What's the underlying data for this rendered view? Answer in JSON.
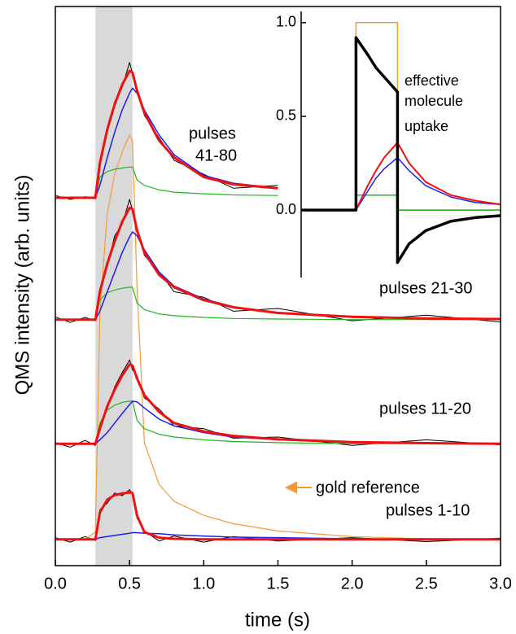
{
  "chart_data": [
    {
      "type": "line",
      "x_label": "time (s)",
      "y_label": "QMS intensity (arb. units)",
      "xlim": [
        0,
        3
      ],
      "ylim": [
        0,
        10
      ],
      "xticks": [
        {
          "value": 0,
          "label": "0.0"
        },
        {
          "value": 0.5,
          "label": "0.5"
        },
        {
          "value": 1,
          "label": "1.0"
        },
        {
          "value": 1.5,
          "label": "1.5"
        },
        {
          "value": 2,
          "label": "2.0"
        },
        {
          "value": 2.5,
          "label": "2.5"
        },
        {
          "value": 3,
          "label": "3.0"
        }
      ],
      "shaded_region": [
        0.27,
        0.52
      ],
      "shade_color": "#d9d9d9",
      "annotations": [
        "pulses",
        "41-80",
        "pulses 21-30",
        "pulses 11-20",
        "pulses 1-10",
        "gold reference"
      ],
      "x": [
        0,
        0.1,
        0.2,
        0.27,
        0.3,
        0.35,
        0.4,
        0.45,
        0.5,
        0.52,
        0.55,
        0.6,
        0.7,
        0.8,
        1.0,
        1.2,
        1.5,
        2.0,
        2.5,
        3.0
      ],
      "series": [
        {
          "color": "#000000",
          "line_width": 1,
          "values": [
            0.5,
            0.42,
            0.52,
            0.45,
            1.0,
            1.12,
            1.3,
            1.25,
            1.36,
            1.28,
            0.85,
            0.62,
            0.44,
            0.53,
            0.42,
            0.52,
            0.44,
            0.5,
            0.43,
            0.49
          ]
        },
        {
          "color": "#000000",
          "line_width": 1,
          "values": [
            2.2,
            2.12,
            2.24,
            2.15,
            2.5,
            2.8,
            3.2,
            3.45,
            3.68,
            3.5,
            3.4,
            3.0,
            2.8,
            2.5,
            2.45,
            2.28,
            2.3,
            2.15,
            2.25,
            2.16
          ]
        },
        {
          "color": "#000000",
          "line_width": 1,
          "values": [
            4.45,
            4.35,
            4.44,
            4.38,
            4.95,
            5.35,
            5.9,
            6.1,
            6.55,
            6.35,
            6.05,
            5.55,
            5.25,
            4.9,
            4.8,
            4.55,
            4.6,
            4.38,
            4.48,
            4.36
          ]
        },
        {
          "color": "#000000",
          "line_width": 1,
          "values": [
            6.62,
            6.55,
            6.6,
            6.56,
            7.25,
            7.75,
            8.3,
            8.55,
            9.0,
            8.8,
            8.55,
            8.05,
            7.65,
            7.25,
            7.0,
            6.75,
            6.8,
            null,
            null,
            null
          ]
        },
        {
          "color": "#f39a3c",
          "line_width": 1.2,
          "values": [
            0.47,
            0.47,
            0.47,
            0.6,
            4.5,
            6.3,
            7.0,
            7.4,
            7.7,
            7.6,
            5.0,
            2.2,
            1.45,
            1.15,
            0.9,
            0.75,
            0.62,
            0.52,
            0.48,
            0.47
          ]
        },
        {
          "color": "#22b422",
          "line_width": 1.2,
          "values": [
            2.18,
            2.18,
            2.18,
            2.18,
            2.55,
            2.78,
            2.87,
            2.92,
            2.94,
            2.94,
            2.6,
            2.45,
            2.35,
            2.3,
            2.25,
            2.22,
            2.2,
            2.18,
            2.18,
            2.18
          ]
        },
        {
          "color": "#22b422",
          "line_width": 1.2,
          "values": [
            4.4,
            4.4,
            4.4,
            4.4,
            4.75,
            4.88,
            4.93,
            4.96,
            4.98,
            4.98,
            4.7,
            4.58,
            4.5,
            4.47,
            4.44,
            4.42,
            4.41,
            4.4,
            4.4,
            4.4
          ]
        },
        {
          "color": "#22b422",
          "line_width": 1.2,
          "values": [
            6.58,
            6.58,
            6.58,
            6.58,
            6.95,
            7.05,
            7.09,
            7.11,
            7.13,
            7.13,
            6.9,
            6.8,
            6.72,
            6.68,
            6.65,
            6.63,
            6.62,
            null,
            null,
            null
          ]
        },
        {
          "color": "#1f1fe6",
          "line_width": 1.5,
          "values": [
            0.47,
            0.47,
            0.47,
            0.47,
            0.5,
            0.52,
            0.54,
            0.56,
            0.58,
            0.59,
            0.59,
            0.58,
            0.57,
            0.55,
            0.53,
            0.51,
            0.5,
            0.48,
            0.47,
            0.47
          ]
        },
        {
          "color": "#1f1fe6",
          "line_width": 1.5,
          "values": [
            2.18,
            2.18,
            2.18,
            2.18,
            2.25,
            2.38,
            2.55,
            2.72,
            2.88,
            2.94,
            2.93,
            2.82,
            2.62,
            2.5,
            2.38,
            2.3,
            2.25,
            2.2,
            2.19,
            2.18
          ]
        },
        {
          "color": "#1f1fe6",
          "line_width": 1.5,
          "values": [
            4.4,
            4.4,
            4.4,
            4.4,
            4.55,
            4.9,
            5.25,
            5.6,
            5.88,
            5.97,
            5.9,
            5.65,
            5.25,
            5.0,
            4.77,
            4.63,
            4.52,
            4.45,
            4.42,
            4.41
          ]
        },
        {
          "color": "#1f1fe6",
          "line_width": 1.5,
          "values": [
            6.58,
            6.58,
            6.58,
            6.58,
            6.8,
            7.3,
            7.75,
            8.15,
            8.45,
            8.54,
            8.45,
            8.15,
            7.7,
            7.35,
            6.98,
            6.84,
            6.75,
            null,
            null,
            null
          ]
        },
        {
          "color": "#ee1111",
          "line_width": 3,
          "values": [
            0.47,
            0.47,
            0.47,
            0.47,
            0.95,
            1.18,
            1.26,
            1.29,
            1.31,
            1.3,
            0.9,
            0.6,
            0.5,
            0.48,
            0.47,
            0.47,
            0.47,
            0.47,
            0.47,
            0.47
          ]
        },
        {
          "color": "#ee1111",
          "line_width": 3,
          "values": [
            2.18,
            2.18,
            2.18,
            2.18,
            2.45,
            2.85,
            3.15,
            3.4,
            3.6,
            3.58,
            3.35,
            3.05,
            2.75,
            2.55,
            2.4,
            2.32,
            2.26,
            2.21,
            2.19,
            2.18
          ]
        },
        {
          "color": "#ee1111",
          "line_width": 3,
          "values": [
            4.4,
            4.4,
            4.4,
            4.4,
            4.9,
            5.4,
            5.8,
            6.15,
            6.4,
            6.38,
            6.0,
            5.6,
            5.2,
            4.98,
            4.75,
            4.62,
            4.52,
            4.45,
            4.42,
            4.41
          ]
        },
        {
          "color": "#ee1111",
          "line_width": 3,
          "values": [
            6.58,
            6.58,
            6.58,
            6.58,
            7.2,
            7.8,
            8.25,
            8.6,
            8.85,
            8.82,
            8.5,
            8.1,
            7.6,
            7.3,
            6.95,
            6.82,
            6.75,
            null,
            null,
            null
          ]
        }
      ]
    },
    {
      "type": "line",
      "xlim": [
        0,
        1.2
      ],
      "ylim": [
        -0.36,
        1.06
      ],
      "yticks": [
        {
          "value": 0,
          "label": "0.0"
        },
        {
          "value": 0.5,
          "label": "0.5"
        },
        {
          "value": 1,
          "label": "1.0"
        }
      ],
      "annotations": [
        "effective",
        "molecule",
        "uptake"
      ],
      "x": [
        0,
        0.33,
        0.33,
        0.4,
        0.45,
        0.5,
        0.58,
        0.58,
        0.65,
        0.75,
        0.9,
        1.05,
        1.2
      ],
      "series": [
        {
          "color": "#f39a3c",
          "line_width": 1.5,
          "values": [
            0,
            0,
            1,
            1,
            1,
            1,
            1,
            0,
            0,
            0,
            0,
            0,
            0
          ]
        },
        {
          "color": "#22b422",
          "line_width": 1.5,
          "values": [
            0,
            0,
            0.08,
            0.08,
            0.08,
            0.08,
            0.08,
            0,
            0,
            0,
            0,
            0,
            0
          ]
        },
        {
          "color": "#1f1fe6",
          "line_width": 1.5,
          "values": [
            0,
            0,
            0,
            0.1,
            0.17,
            0.22,
            0.28,
            0.28,
            0.21,
            0.13,
            0.07,
            0.04,
            0.03
          ]
        },
        {
          "color": "#ee1111",
          "line_width": 2,
          "values": [
            0,
            0,
            0,
            0.13,
            0.21,
            0.28,
            0.36,
            0.36,
            0.25,
            0.15,
            0.08,
            0.05,
            0.03
          ]
        },
        {
          "color": "#000000",
          "line_width": 3.5,
          "values": [
            0,
            0,
            0.92,
            0.83,
            0.76,
            0.71,
            0.63,
            -0.28,
            -0.18,
            -0.11,
            -0.06,
            -0.04,
            -0.03
          ]
        }
      ]
    }
  ]
}
